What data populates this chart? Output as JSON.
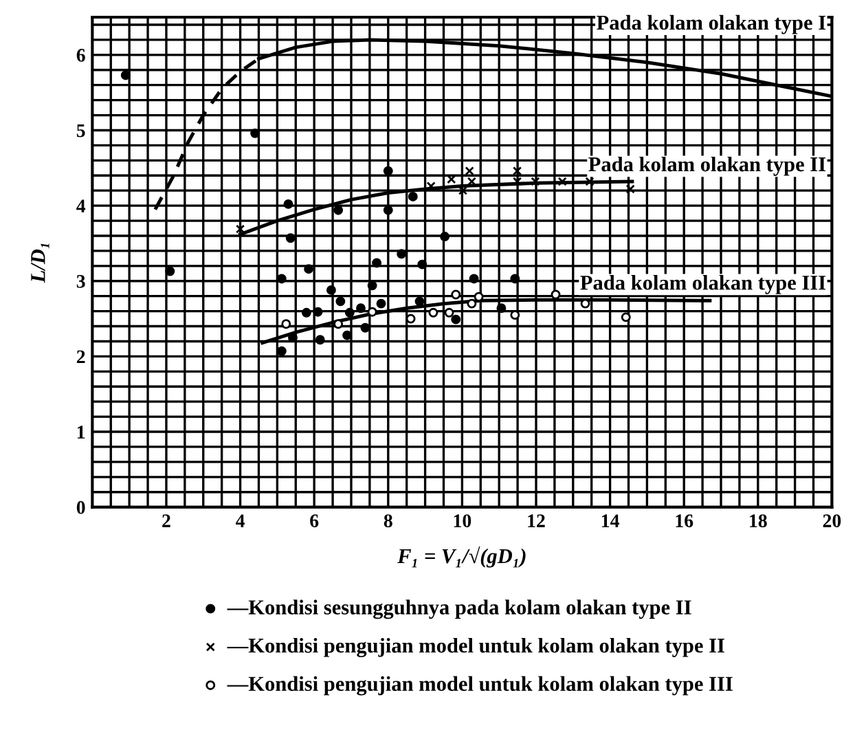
{
  "chart_data": {
    "type": "line",
    "xlabel": "F₁ = V₁/√(gD₁)",
    "ylabel": "L/D₁",
    "xlim": [
      0,
      20
    ],
    "ylim": [
      0,
      6.5
    ],
    "xticks": [
      {
        "value": 0.5,
        "label": null
      },
      {
        "value": 1,
        "label": null
      },
      {
        "value": 1.5,
        "label": null
      },
      2,
      {
        "value": 2.5,
        "label": null
      },
      {
        "value": 3,
        "label": null
      },
      {
        "value": 3.5,
        "label": null
      },
      4,
      {
        "value": 4.5,
        "label": null
      },
      {
        "value": 5,
        "label": null
      },
      {
        "value": 5.5,
        "label": null
      },
      6,
      {
        "value": 6.5,
        "label": null
      },
      {
        "value": 7,
        "label": null
      },
      {
        "value": 7.5,
        "label": null
      },
      8,
      {
        "value": 8.5,
        "label": null
      },
      {
        "value": 9,
        "label": null
      },
      {
        "value": 9.5,
        "label": null
      },
      10,
      {
        "value": 10.5,
        "label": null
      },
      {
        "value": 11,
        "label": null
      },
      {
        "value": 11.5,
        "label": null
      },
      12,
      {
        "value": 12.5,
        "label": null
      },
      {
        "value": 13,
        "label": null
      },
      {
        "value": 13.5,
        "label": null
      },
      14,
      {
        "value": 14.5,
        "label": null
      },
      {
        "value": 15,
        "label": null
      },
      {
        "value": 15.5,
        "label": null
      },
      16,
      {
        "value": 16.5,
        "label": null
      },
      {
        "value": 17,
        "label": null
      },
      {
        "value": 17.5,
        "label": null
      },
      18,
      {
        "value": 18.5,
        "label": null
      },
      {
        "value": 19,
        "label": null
      },
      {
        "value": 19.5,
        "label": null
      },
      20
    ],
    "yticks": [
      0,
      {
        "value": 0.2,
        "label": null
      },
      {
        "value": 0.4,
        "label": null
      },
      {
        "value": 0.6,
        "label": null
      },
      {
        "value": 0.8,
        "label": null
      },
      1,
      {
        "value": 1.2,
        "label": null
      },
      {
        "value": 1.4,
        "label": null
      },
      {
        "value": 1.6,
        "label": null
      },
      {
        "value": 1.8,
        "label": null
      },
      2,
      {
        "value": 2.2,
        "label": null
      },
      {
        "value": 2.4,
        "label": null
      },
      {
        "value": 2.6,
        "label": null
      },
      {
        "value": 2.8,
        "label": null
      },
      3,
      {
        "value": 3.2,
        "label": null
      },
      {
        "value": 3.4,
        "label": null
      },
      {
        "value": 3.6,
        "label": null
      },
      {
        "value": 3.8,
        "label": null
      },
      4,
      {
        "value": 4.2,
        "label": null
      },
      {
        "value": 4.4,
        "label": null
      },
      {
        "value": 4.6,
        "label": null
      },
      {
        "value": 4.8,
        "label": null
      },
      5,
      {
        "value": 5.2,
        "label": null
      },
      {
        "value": 5.4,
        "label": null
      },
      {
        "value": 5.6,
        "label": null
      },
      {
        "value": 5.8,
        "label": null
      },
      6,
      {
        "value": 6.2,
        "label": null
      },
      {
        "value": 6.4,
        "label": null
      }
    ],
    "grid": true,
    "legend": "bottom",
    "series": [
      {
        "color": "#000000",
        "line_style": "dashed",
        "x": [
          1.7,
          2.2,
          2.6,
          3.0,
          3.5,
          4.0,
          4.5
        ],
        "values": [
          3.95,
          4.4,
          4.85,
          5.2,
          5.55,
          5.78,
          5.95
        ]
      },
      {
        "name": "Pada kolam olakan type I",
        "color": "#000000",
        "line_style": "solid",
        "x": [
          4.5,
          5.5,
          6.5,
          7.5,
          9,
          11,
          13,
          15,
          17,
          18.5,
          20
        ],
        "values": [
          5.95,
          6.1,
          6.18,
          6.2,
          6.18,
          6.12,
          6.02,
          5.9,
          5.75,
          5.6,
          5.45
        ]
      },
      {
        "name": "Pada kolam olakan type II",
        "color": "#000000",
        "line_style": "solid",
        "x": [
          4,
          5,
          6,
          7,
          8,
          9,
          10,
          12,
          14.6
        ],
        "values": [
          3.62,
          3.8,
          3.95,
          4.08,
          4.17,
          4.22,
          4.26,
          4.3,
          4.32
        ]
      },
      {
        "name": "Pada kolam olakan type III",
        "color": "#000000",
        "line_style": "solid",
        "x": [
          4.6,
          5.5,
          6.5,
          7.5,
          8.5,
          9.5,
          10.5,
          12,
          14,
          16.7
        ],
        "values": [
          2.18,
          2.32,
          2.45,
          2.56,
          2.64,
          2.7,
          2.74,
          2.75,
          2.75,
          2.74
        ]
      },
      {
        "type": "scatter",
        "name": "—Kondisi sesungguhnya pada kolam olakan type II",
        "color": "#000000",
        "marker": "circle",
        "x": [
          0.9,
          2.1,
          4.4,
          8.0,
          5.3,
          6.65,
          8.0,
          8.67,
          5.36,
          9.53,
          5.85,
          7.69,
          8.36,
          8.92,
          5.12,
          6.46,
          7.57,
          6.71,
          7.81,
          8.85,
          5.79,
          6.96,
          7.26,
          6.1,
          7.38,
          5.42,
          6.16,
          6.89,
          5.12,
          9.83,
          10.32,
          11.43,
          11.06
        ],
        "values": [
          5.73,
          3.13,
          4.96,
          4.46,
          4.02,
          3.94,
          3.94,
          4.12,
          3.57,
          3.59,
          3.16,
          3.24,
          3.36,
          3.22,
          3.03,
          2.88,
          2.94,
          2.73,
          2.7,
          2.73,
          2.58,
          2.58,
          2.64,
          2.59,
          2.38,
          2.25,
          2.22,
          2.28,
          2.07,
          2.49,
          3.03,
          3.03,
          2.64
        ]
      },
      {
        "type": "scatter",
        "name": "—Kondisi pengujian model untuk kolam olakan type II",
        "color": "#000000",
        "marker": "cross",
        "x": [
          4.0,
          9.16,
          9.71,
          10.02,
          10.26,
          10.2,
          11.49,
          11.49,
          11.98,
          12.71,
          13.45,
          14.55
        ],
        "values": [
          3.69,
          4.26,
          4.35,
          4.2,
          4.32,
          4.46,
          4.32,
          4.46,
          4.32,
          4.32,
          4.32,
          4.22
        ]
      },
      {
        "type": "scatter",
        "name": "—Kondisi pengujian model untuk kolam olakan type III",
        "color": "#ffffff",
        "marker": "circle",
        "x": [
          5.24,
          6.65,
          7.57,
          8.61,
          9.22,
          9.65,
          9.83,
          10.26,
          10.45,
          11.43,
          12.53,
          13.33,
          14.43
        ],
        "values": [
          2.43,
          2.43,
          2.59,
          2.5,
          2.58,
          2.58,
          2.82,
          2.7,
          2.79,
          2.55,
          2.82,
          2.7,
          2.52
        ]
      }
    ]
  }
}
